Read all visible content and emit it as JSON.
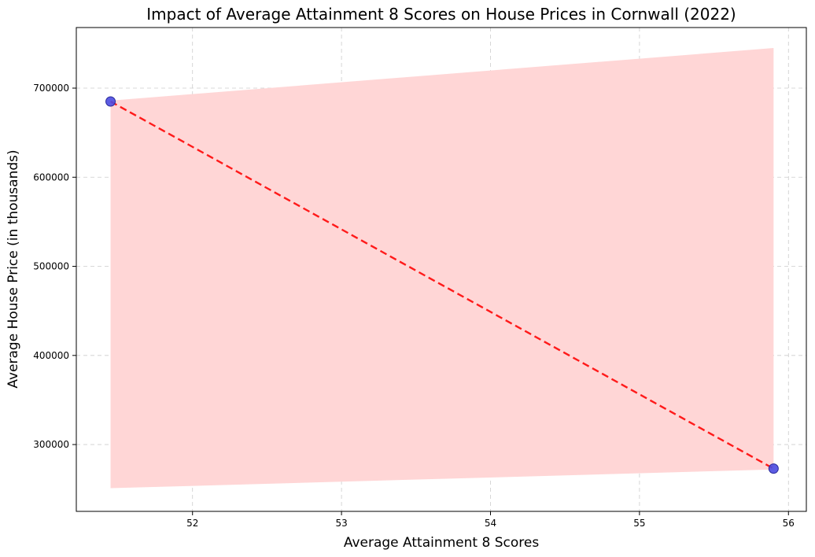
{
  "chart_data": {
    "type": "scatter",
    "title": "Impact of Average Attainment 8 Scores on House Prices in Cornwall (2022)",
    "xlabel": "Average Attainment 8 Scores",
    "ylabel": "Average House Price (in thousands)",
    "xlim": [
      51.22,
      56.12
    ],
    "ylim": [
      225000,
      768000
    ],
    "xticks": [
      52,
      53,
      54,
      55,
      56
    ],
    "xtick_labels": [
      "52",
      "53",
      "54",
      "55",
      "56"
    ],
    "yticks": [
      300000,
      400000,
      500000,
      600000,
      700000
    ],
    "ytick_labels": [
      "300000",
      "400000",
      "500000",
      "600000",
      "700000"
    ],
    "grid": true,
    "points": {
      "x": [
        51.45,
        55.9
      ],
      "y": [
        685000,
        273000
      ]
    },
    "trend_line": {
      "x": [
        51.45,
        55.9
      ],
      "y": [
        685000,
        273000
      ]
    },
    "confidence_band": {
      "x": [
        51.45,
        55.9
      ],
      "upper": [
        686000,
        745000
      ],
      "lower": [
        251000,
        272000
      ]
    },
    "colors": {
      "point_fill": "#4a4ae0",
      "point_edge": "#2a2a9a",
      "trend_line": "#ff1a1a",
      "band": "#ffd6d6",
      "grid": "#cccccc"
    }
  }
}
